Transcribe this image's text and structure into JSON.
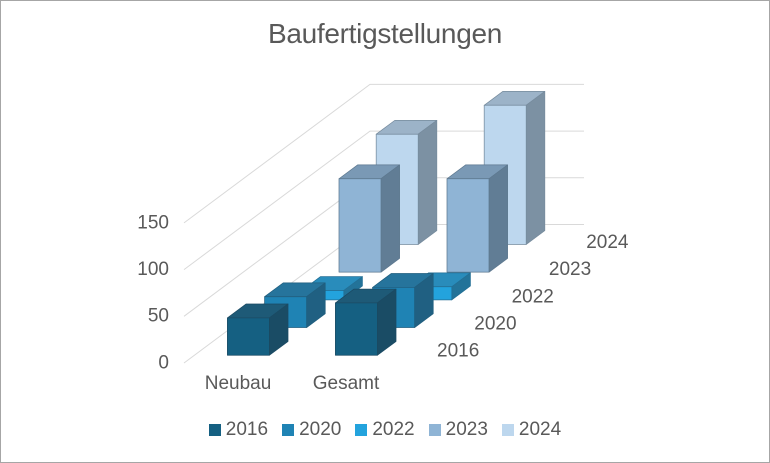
{
  "window": {
    "background": "#FFFFFF",
    "border_color": "#A6A6A6"
  },
  "chart_data": {
    "type": "bar",
    "variant": "3d-column",
    "title": "Baufertigstellungen",
    "categories": [
      "Neubau",
      "Gesamt"
    ],
    "series": [
      {
        "name": "2016",
        "color": "#156082",
        "values": [
          40,
          56
        ]
      },
      {
        "name": "2020",
        "color": "#1F83B4",
        "values": [
          33,
          43
        ]
      },
      {
        "name": "2022",
        "color": "#23A3DD",
        "values": [
          10,
          14
        ]
      },
      {
        "name": "2023",
        "color": "#8FB4D5",
        "values": [
          100,
          100
        ]
      },
      {
        "name": "2024",
        "color": "#BDD7EE",
        "values": [
          118,
          149
        ]
      }
    ],
    "value_axis": {
      "min": 0,
      "max": 150,
      "ticks": [
        0,
        50,
        100,
        150
      ]
    },
    "depth_axis": {
      "labels": [
        "2016",
        "2020",
        "2022",
        "2023",
        "2024"
      ]
    },
    "grid": true,
    "grid_color": "#D9D9D9",
    "text_color": "#595959",
    "legend_position": "bottom"
  }
}
